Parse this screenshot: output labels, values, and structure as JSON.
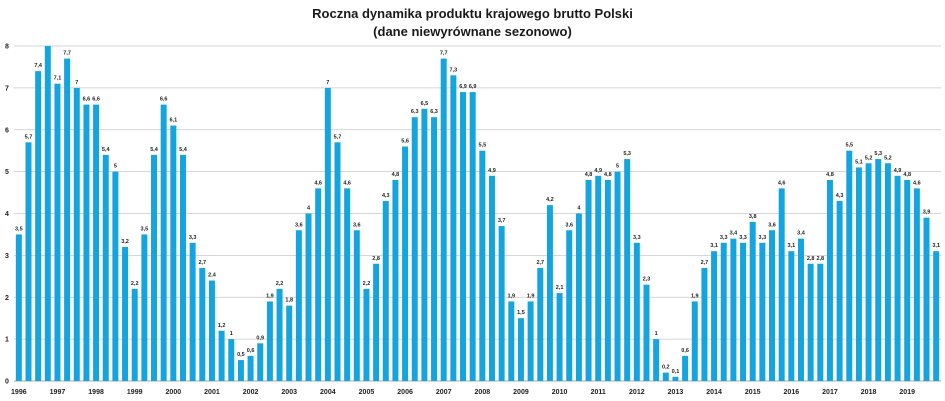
{
  "chart_data": {
    "type": "bar",
    "title": "Roczna dynamika produktu krajowego brutto Polski",
    "subtitle": "(dane niewyrównane sezonowo)",
    "xlabel": "",
    "ylabel": "",
    "ylim": [
      0,
      8
    ],
    "yticks": [
      "0",
      "1",
      "2",
      "3",
      "4",
      "5",
      "6",
      "7",
      "8"
    ],
    "grid": true,
    "bar_color": "#14a5e0",
    "years": [
      "1996",
      "1997",
      "1998",
      "1999",
      "2000",
      "2001",
      "2002",
      "2003",
      "2004",
      "2005",
      "2006",
      "2007",
      "2008",
      "2009",
      "2010",
      "2011",
      "2012",
      "2013",
      "2014",
      "2015",
      "2016",
      "2017",
      "2018",
      "2019"
    ],
    "values": [
      3.5,
      5.7,
      7.4,
      8.0,
      7.1,
      7.7,
      7.0,
      6.6,
      6.6,
      5.4,
      5.0,
      3.2,
      2.2,
      3.5,
      5.4,
      6.6,
      6.1,
      5.4,
      3.3,
      2.7,
      2.4,
      1.2,
      1.0,
      0.5,
      0.6,
      0.9,
      1.9,
      2.2,
      1.8,
      3.6,
      4.0,
      4.6,
      7.0,
      5.7,
      4.6,
      3.6,
      2.2,
      2.8,
      4.3,
      4.8,
      5.6,
      6.3,
      6.5,
      6.3,
      7.7,
      7.3,
      6.9,
      6.9,
      5.5,
      4.9,
      3.7,
      1.9,
      1.5,
      1.9,
      2.7,
      4.2,
      2.1,
      3.6,
      4.0,
      4.8,
      4.9,
      4.8,
      5.0,
      5.3,
      3.3,
      2.3,
      1.0,
      0.2,
      0.1,
      0.6,
      1.9,
      2.7,
      3.1,
      3.3,
      3.4,
      3.3,
      3.8,
      3.3,
      3.6,
      4.6,
      3.1,
      3.4,
      2.8,
      2.8,
      4.8,
      4.3,
      5.5,
      5.1,
      5.2,
      5.3,
      5.2,
      4.9,
      4.8,
      4.6,
      3.9,
      3.1
    ],
    "labels": [
      "3,5",
      "5,7",
      "7,4",
      "",
      "7,1",
      "7,7",
      "7",
      "6,6",
      "6,6",
      "5,4",
      "5",
      "3,2",
      "2,2",
      "3,5",
      "5,4",
      "6,6",
      "6,1",
      "5,4",
      "3,3",
      "2,7",
      "2,4",
      "1,2",
      "1",
      "0,5",
      "0,6",
      "0,9",
      "1,9",
      "2,2",
      "1,8",
      "3,6",
      "4",
      "4,6",
      "7",
      "5,7",
      "4,6",
      "3,6",
      "2,2",
      "2,8",
      "4,3",
      "4,8",
      "5,6",
      "6,3",
      "6,5",
      "6,3",
      "7,7",
      "7,3",
      "6,9",
      "6,9",
      "5,5",
      "4,9",
      "3,7",
      "1,9",
      "1,5",
      "1,9",
      "2,7",
      "4,2",
      "2,1",
      "3,6",
      "4",
      "4,8",
      "4,9",
      "4,8",
      "5",
      "5,3",
      "3,3",
      "2,3",
      "1",
      "0,2",
      "0,1",
      "0,6",
      "1,9",
      "2,7",
      "3,1",
      "3,3",
      "3,4",
      "3,3",
      "3,8",
      "3,3",
      "3,6",
      "4,6",
      "3,1",
      "3,4",
      "2,8",
      "2,8",
      "4,8",
      "4,3",
      "5,5",
      "5,1",
      "5,2",
      "5,3",
      "5,2",
      "4,9",
      "4,8",
      "4,6",
      "3,9",
      "3,1"
    ]
  }
}
